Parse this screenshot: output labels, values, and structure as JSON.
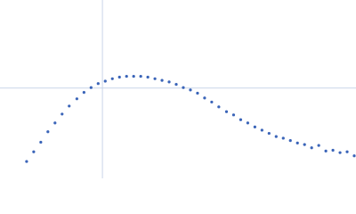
{
  "chart_data": {
    "type": "scatter",
    "x": [
      0.45,
      0.57,
      0.69,
      0.81,
      0.93,
      1.05,
      1.17,
      1.3,
      1.42,
      1.54,
      1.66,
      1.78,
      1.9,
      2.02,
      2.14,
      2.26,
      2.38,
      2.5,
      2.62,
      2.74,
      2.86,
      2.98,
      3.1,
      3.22,
      3.34,
      3.46,
      3.58,
      3.7,
      3.83,
      3.95,
      4.07,
      4.19,
      4.31,
      4.43,
      4.55,
      4.67,
      4.79,
      4.91,
      5.03,
      5.15,
      5.27,
      5.39,
      5.51,
      5.63,
      5.75,
      5.87,
      5.99
    ],
    "values": [
      0.19,
      0.31,
      0.43,
      0.56,
      0.67,
      0.78,
      0.88,
      0.97,
      1.05,
      1.11,
      1.16,
      1.19,
      1.22,
      1.24,
      1.25,
      1.25,
      1.25,
      1.24,
      1.22,
      1.2,
      1.18,
      1.15,
      1.11,
      1.08,
      1.04,
      0.98,
      0.93,
      0.87,
      0.81,
      0.77,
      0.71,
      0.67,
      0.62,
      0.58,
      0.54,
      0.5,
      0.48,
      0.45,
      0.42,
      0.4,
      0.36,
      0.39,
      0.32,
      0.33,
      0.3,
      0.31,
      0.26
    ],
    "color": "#3a64b8",
    "xlim": [
      0,
      6.02
    ],
    "ylim": [
      -0.02,
      2.2
    ],
    "crosshair": [
      1.732,
      1.104
    ],
    "crosshair_color": "#c9d5e8"
  }
}
